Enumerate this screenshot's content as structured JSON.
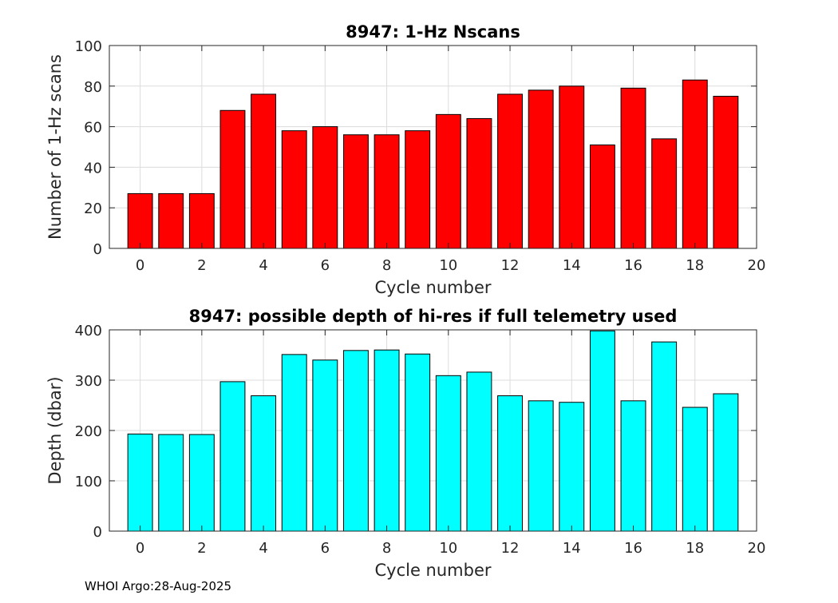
{
  "footer": "WHOI Argo:28-Aug-2025",
  "chart_data": [
    {
      "type": "bar",
      "title": "8947: 1-Hz Nscans",
      "xlabel": "Cycle number",
      "ylabel": "Number of 1-Hz scans",
      "x": [
        0,
        1,
        2,
        3,
        4,
        5,
        6,
        7,
        8,
        9,
        10,
        11,
        12,
        13,
        14,
        15,
        16,
        17,
        18,
        19
      ],
      "values": [
        27,
        27,
        27,
        68,
        76,
        58,
        60,
        56,
        56,
        58,
        66,
        64,
        76,
        78,
        80,
        51,
        79,
        54,
        83,
        75
      ],
      "xlim": [
        -1,
        20
      ],
      "ylim": [
        0,
        100
      ],
      "xticks": [
        "0",
        "2",
        "4",
        "6",
        "8",
        "10",
        "12",
        "14",
        "16",
        "18",
        "20"
      ],
      "yticks": [
        "0",
        "20",
        "40",
        "60",
        "80",
        "100"
      ],
      "color": "#ff0000",
      "grid": true
    },
    {
      "type": "bar",
      "title": "8947: possible depth of hi-res if full telemetry used",
      "xlabel": "Cycle number",
      "ylabel": "Depth (dbar)",
      "x": [
        0,
        1,
        2,
        3,
        4,
        5,
        6,
        7,
        8,
        9,
        10,
        11,
        12,
        13,
        14,
        15,
        16,
        17,
        18,
        19
      ],
      "values": [
        193,
        192,
        192,
        297,
        269,
        351,
        340,
        359,
        360,
        352,
        309,
        316,
        269,
        259,
        256,
        398,
        259,
        376,
        246,
        273
      ],
      "xlim": [
        -1,
        20
      ],
      "ylim": [
        0,
        400
      ],
      "xticks": [
        "0",
        "2",
        "4",
        "6",
        "8",
        "10",
        "12",
        "14",
        "16",
        "18",
        "20"
      ],
      "yticks": [
        "0",
        "100",
        "200",
        "300",
        "400"
      ],
      "color": "#00ffff",
      "grid": true
    }
  ]
}
